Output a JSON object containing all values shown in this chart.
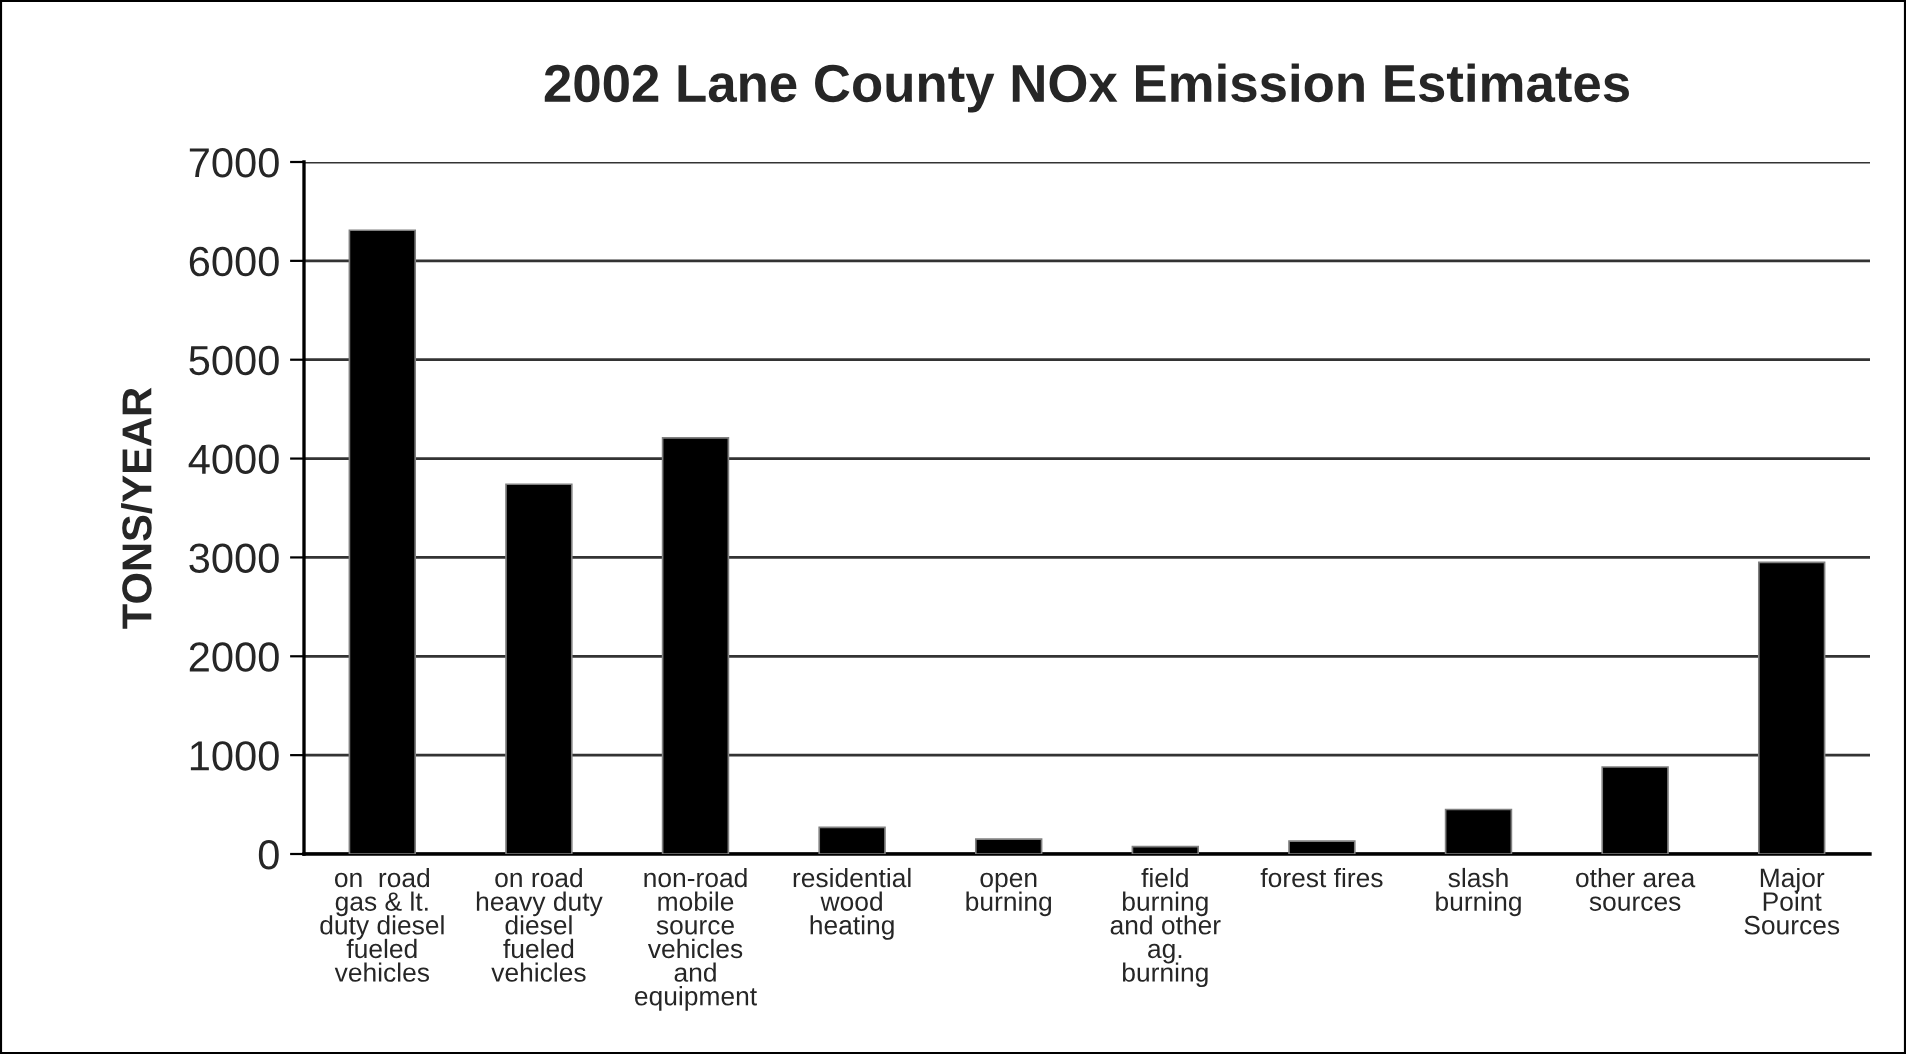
{
  "chart_data": {
    "type": "bar",
    "title": "2002 Lane County NOx Emission Estimates",
    "ylabel": "TONS/YEAR",
    "categories": [
      "on  road\ngas & lt.\nduty diesel\nfueled\nvehicles",
      "on road\nheavy duty\ndiesel\nfueled\nvehicles",
      "non-road\nmobile\nsource\nvehicles\nand\nequipment",
      "residential\nwood\nheating",
      "open\nburning",
      "field\nburning\nand other\nag.\nburning",
      "forest fires",
      "slash\nburning",
      "other area\nsources",
      "Major\nPoint\nSources"
    ],
    "values": [
      6310,
      3740,
      4210,
      270,
      150,
      75,
      130,
      450,
      880,
      2950
    ],
    "color": "#000000",
    "ylim": [
      0,
      7000
    ],
    "yticks": [
      0,
      1000,
      2000,
      3000,
      4000,
      5000,
      6000,
      7000
    ],
    "grid": "y",
    "legend": false
  }
}
